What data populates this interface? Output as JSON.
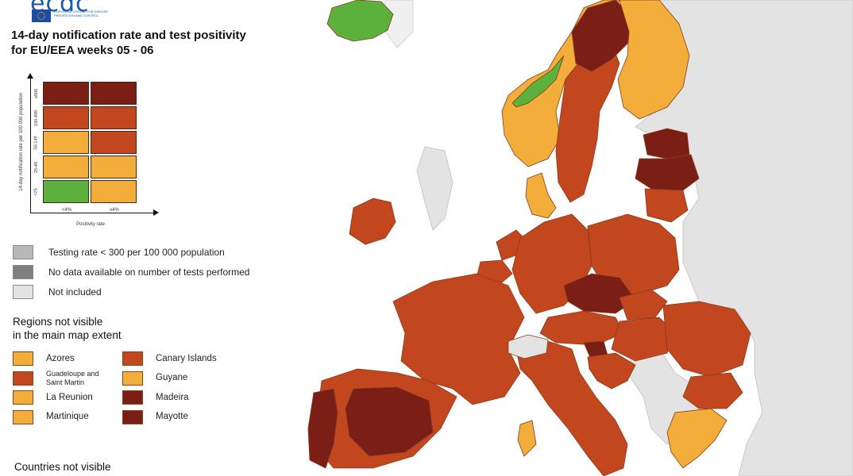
{
  "logo": {
    "mark": "ecdc",
    "text": "European Centre for Disease Prevention and Control"
  },
  "title": {
    "line1": "14-day notification rate and test positivity",
    "line2": "for EU/EEA weeks 05 - 06"
  },
  "colors": {
    "green": "#5bb13b",
    "light_orange": "#f2ad3b",
    "orange_red": "#c2471f",
    "dark_red": "#7a1e16",
    "not_included": "#e3e3e3",
    "sea": "#ffffff"
  },
  "matrix": {
    "y_axis_label": "14-day notification rate per 100 000 population",
    "x_axis_label": "Positivity rate",
    "rows": [
      "≥500",
      "150-499",
      "50-149",
      "25-49",
      "<25"
    ],
    "columns": [
      "<4%",
      "≥4%"
    ],
    "cells": [
      [
        "dark_red",
        "dark_red"
      ],
      [
        "orange_red",
        "orange_red"
      ],
      [
        "light_orange",
        "orange_red"
      ],
      [
        "light_orange",
        "light_orange"
      ],
      [
        "green",
        "light_orange"
      ]
    ]
  },
  "grey_legend": [
    {
      "label": "Testing rate < 300 per 100 000 population",
      "color": "#b8b8b8"
    },
    {
      "label": "No data available on number of tests performed",
      "color": "#7f7f7f"
    },
    {
      "label": "Not included",
      "color": "#e3e3e3"
    }
  ],
  "regions": {
    "heading_line1": "Regions not visible",
    "heading_line2": "in the main map extent",
    "items": [
      {
        "label": "Azores",
        "color": "light_orange"
      },
      {
        "label": "Canary Islands",
        "color": "orange_red"
      },
      {
        "label": "Guadeloupe and Saint Martin",
        "color": "orange_red"
      },
      {
        "label": "Guyane",
        "color": "light_orange"
      },
      {
        "label": "La Reunion",
        "color": "light_orange"
      },
      {
        "label": "Madeira",
        "color": "dark_red"
      },
      {
        "label": "Martinique",
        "color": "light_orange"
      },
      {
        "label": "Mayotte",
        "color": "dark_red"
      }
    ]
  },
  "countries_heading": "Countries not visible",
  "map_areas": [
    {
      "name": "iceland",
      "color": "green"
    },
    {
      "name": "norway",
      "color": "light_orange"
    },
    {
      "name": "norway-west-coast",
      "color": "green"
    },
    {
      "name": "sweden",
      "color": "orange_red"
    },
    {
      "name": "sweden-north",
      "color": "dark_red"
    },
    {
      "name": "finland",
      "color": "light_orange"
    },
    {
      "name": "estonia",
      "color": "dark_red"
    },
    {
      "name": "latvia",
      "color": "dark_red"
    },
    {
      "name": "lithuania",
      "color": "orange_red"
    },
    {
      "name": "denmark",
      "color": "light_orange"
    },
    {
      "name": "ireland",
      "color": "orange_red"
    },
    {
      "name": "netherlands",
      "color": "orange_red"
    },
    {
      "name": "belgium",
      "color": "orange_red"
    },
    {
      "name": "germany",
      "color": "orange_red"
    },
    {
      "name": "poland",
      "color": "orange_red"
    },
    {
      "name": "czechia",
      "color": "dark_red"
    },
    {
      "name": "slovakia",
      "color": "orange_red"
    },
    {
      "name": "austria",
      "color": "orange_red"
    },
    {
      "name": "hungary",
      "color": "orange_red"
    },
    {
      "name": "romania",
      "color": "orange_red"
    },
    {
      "name": "bulgaria",
      "color": "orange_red"
    },
    {
      "name": "france",
      "color": "orange_red"
    },
    {
      "name": "spain",
      "color": "orange_red"
    },
    {
      "name": "spain-interior",
      "color": "dark_red"
    },
    {
      "name": "portugal",
      "color": "dark_red"
    },
    {
      "name": "italy",
      "color": "orange_red"
    },
    {
      "name": "sardinia",
      "color": "light_orange"
    },
    {
      "name": "slovenia",
      "color": "dark_red"
    },
    {
      "name": "croatia",
      "color": "orange_red"
    },
    {
      "name": "greece",
      "color": "light_orange"
    },
    {
      "name": "switzerland",
      "color": "not_included"
    }
  ]
}
